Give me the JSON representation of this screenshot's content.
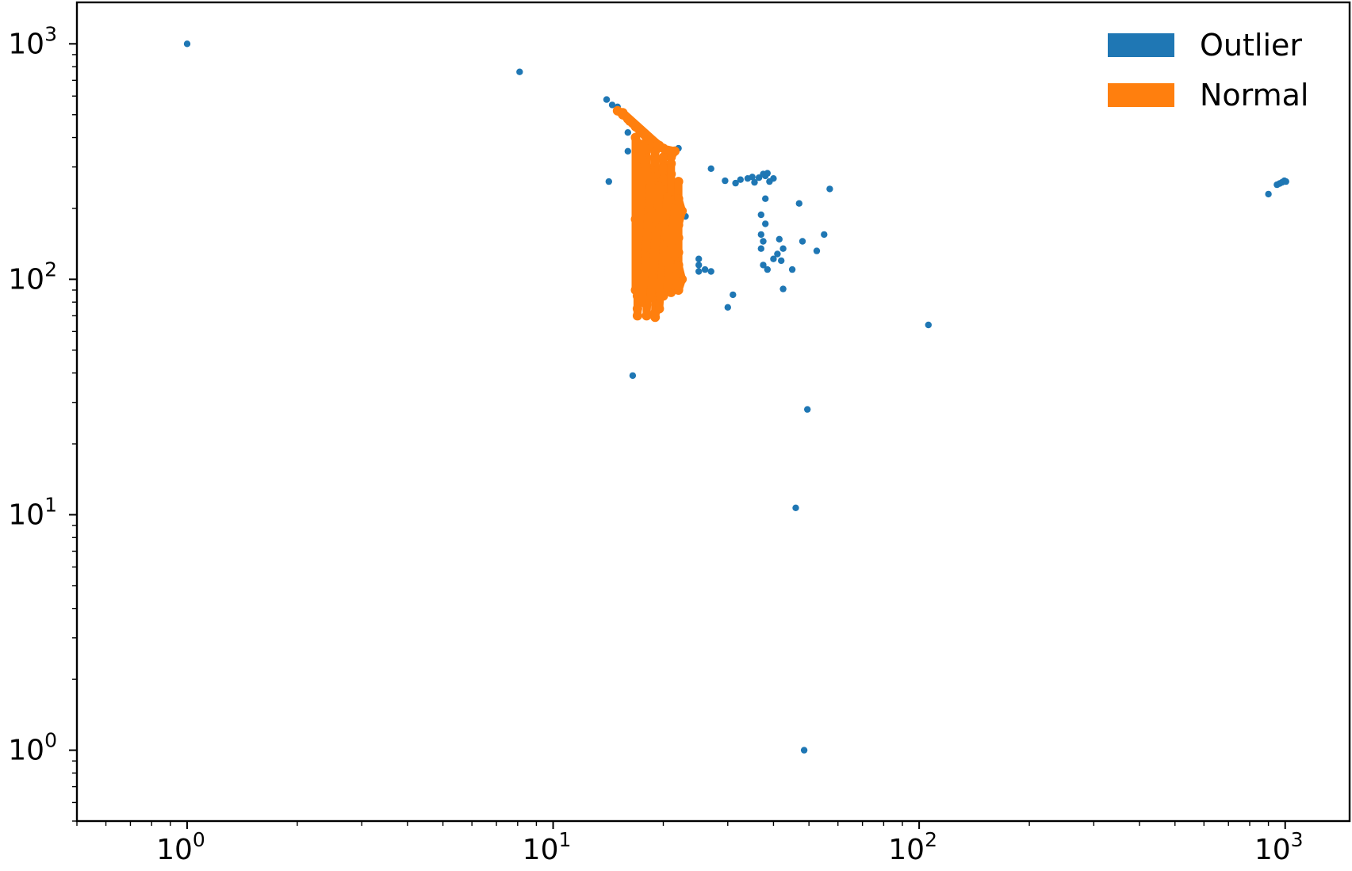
{
  "chart_data": {
    "type": "scatter",
    "title": "",
    "xlabel": "",
    "ylabel": "",
    "xscale": "log",
    "yscale": "log",
    "xlim": [
      0.5,
      1500
    ],
    "ylim": [
      0.5,
      1500
    ],
    "grid": false,
    "legend_position": "top-right",
    "x_tick_labels": [
      {
        "value": 1,
        "base": "10",
        "exp": "0"
      },
      {
        "value": 10,
        "base": "10",
        "exp": "1"
      },
      {
        "value": 100,
        "base": "10",
        "exp": "2"
      },
      {
        "value": 1000,
        "base": "10",
        "exp": "3"
      }
    ],
    "y_tick_labels": [
      {
        "value": 1,
        "base": "10",
        "exp": "0"
      },
      {
        "value": 10,
        "base": "10",
        "exp": "1"
      },
      {
        "value": 100,
        "base": "10",
        "exp": "2"
      },
      {
        "value": 1000,
        "base": "10",
        "exp": "3"
      }
    ],
    "series": [
      {
        "name": "Outlier",
        "color": "#1f77b4",
        "points": [
          [
            1.0,
            1000
          ],
          [
            8.1,
            760
          ],
          [
            14.0,
            580
          ],
          [
            14.5,
            550
          ],
          [
            15.0,
            540
          ],
          [
            16.0,
            420
          ],
          [
            16.0,
            350
          ],
          [
            14.2,
            260
          ],
          [
            22.0,
            360
          ],
          [
            27.0,
            295
          ],
          [
            29.5,
            262
          ],
          [
            31.5,
            256
          ],
          [
            32.5,
            265
          ],
          [
            34.0,
            268
          ],
          [
            35.0,
            272
          ],
          [
            36.5,
            270
          ],
          [
            35.5,
            258
          ],
          [
            38.0,
            275
          ],
          [
            39.0,
            260
          ],
          [
            40.0,
            268
          ],
          [
            37.5,
            280
          ],
          [
            38.5,
            282
          ],
          [
            38.0,
            220
          ],
          [
            47.0,
            210
          ],
          [
            57.0,
            242
          ],
          [
            37.0,
            188
          ],
          [
            38.0,
            172
          ],
          [
            37.0,
            155
          ],
          [
            37.5,
            145
          ],
          [
            37.0,
            135
          ],
          [
            41.5,
            148
          ],
          [
            41.0,
            128
          ],
          [
            42.5,
            135
          ],
          [
            40.0,
            122
          ],
          [
            42.0,
            120
          ],
          [
            38.5,
            110
          ],
          [
            37.5,
            115
          ],
          [
            45.0,
            110
          ],
          [
            48.0,
            145
          ],
          [
            52.5,
            132
          ],
          [
            55.0,
            155
          ],
          [
            22.0,
            210
          ],
          [
            23.0,
            185
          ],
          [
            25.0,
            122
          ],
          [
            25.0,
            115
          ],
          [
            25.0,
            108
          ],
          [
            26.0,
            110
          ],
          [
            27.0,
            108
          ],
          [
            31.0,
            86
          ],
          [
            30.0,
            76
          ],
          [
            42.5,
            91
          ],
          [
            106,
            64
          ],
          [
            16.5,
            39
          ],
          [
            49.5,
            28
          ],
          [
            46.0,
            10.7
          ],
          [
            48.5,
            1.0
          ],
          [
            900,
            230
          ],
          [
            950,
            252
          ],
          [
            965,
            255
          ],
          [
            980,
            258
          ],
          [
            995,
            262
          ],
          [
            1005,
            260
          ],
          [
            20.0,
            120
          ],
          [
            21.0,
            100
          ]
        ]
      },
      {
        "name": "Normal",
        "color": "#ff7f0e",
        "points": [
          [
            15.0,
            520
          ],
          [
            15.5,
            500
          ],
          [
            16.0,
            480
          ],
          [
            16.5,
            460
          ],
          [
            17.0,
            440
          ],
          [
            17.5,
            420
          ],
          [
            18.0,
            400
          ],
          [
            18.5,
            390
          ],
          [
            19.0,
            380
          ],
          [
            19.5,
            370
          ],
          [
            15.5,
            510
          ],
          [
            16.2,
            470
          ],
          [
            16.8,
            445
          ],
          [
            17.3,
            425
          ],
          [
            17.8,
            410
          ],
          [
            18.2,
            395
          ],
          [
            19.2,
            375
          ],
          [
            20.0,
            360
          ],
          [
            20.5,
            345
          ],
          [
            21.0,
            330
          ],
          [
            21.5,
            350
          ],
          [
            17.0,
            380
          ],
          [
            17.0,
            350
          ],
          [
            17.0,
            320
          ],
          [
            17.0,
            290
          ],
          [
            17.0,
            260
          ],
          [
            17.0,
            230
          ],
          [
            17.0,
            200
          ],
          [
            17.0,
            170
          ],
          [
            17.0,
            150
          ],
          [
            17.0,
            130
          ],
          [
            17.0,
            110
          ],
          [
            17.0,
            95
          ],
          [
            17.0,
            85
          ],
          [
            17.0,
            75
          ],
          [
            17.0,
            70
          ],
          [
            18.0,
            360
          ],
          [
            18.0,
            330
          ],
          [
            18.0,
            300
          ],
          [
            18.0,
            270
          ],
          [
            18.0,
            240
          ],
          [
            18.0,
            210
          ],
          [
            18.0,
            180
          ],
          [
            18.0,
            160
          ],
          [
            18.0,
            140
          ],
          [
            18.0,
            120
          ],
          [
            18.0,
            100
          ],
          [
            18.0,
            88
          ],
          [
            18.0,
            78
          ],
          [
            18.0,
            70
          ],
          [
            19.0,
            350
          ],
          [
            19.0,
            320
          ],
          [
            19.0,
            290
          ],
          [
            19.0,
            260
          ],
          [
            19.0,
            230
          ],
          [
            19.0,
            200
          ],
          [
            19.0,
            175
          ],
          [
            19.0,
            150
          ],
          [
            19.0,
            130
          ],
          [
            19.0,
            110
          ],
          [
            19.0,
            95
          ],
          [
            19.0,
            82
          ],
          [
            19.0,
            72
          ],
          [
            19.0,
            69
          ],
          [
            20.0,
            330
          ],
          [
            20.0,
            300
          ],
          [
            20.0,
            270
          ],
          [
            20.0,
            240
          ],
          [
            20.0,
            210
          ],
          [
            20.0,
            180
          ],
          [
            20.0,
            155
          ],
          [
            20.0,
            135
          ],
          [
            20.0,
            115
          ],
          [
            20.0,
            98
          ],
          [
            20.0,
            85
          ],
          [
            21.0,
            310
          ],
          [
            21.0,
            280
          ],
          [
            21.0,
            250
          ],
          [
            21.0,
            220
          ],
          [
            21.0,
            190
          ],
          [
            21.0,
            165
          ],
          [
            21.0,
            140
          ],
          [
            21.0,
            120
          ],
          [
            21.0,
            100
          ],
          [
            21.0,
            88
          ],
          [
            22.0,
            260
          ],
          [
            22.0,
            220
          ],
          [
            22.5,
            195
          ],
          [
            22.0,
            170
          ],
          [
            22.0,
            150
          ],
          [
            22.0,
            130
          ],
          [
            22.0,
            115
          ],
          [
            22.5,
            100
          ],
          [
            22.0,
            90
          ],
          [
            17.5,
            300
          ],
          [
            17.5,
            200
          ],
          [
            17.5,
            120
          ],
          [
            17.5,
            80
          ],
          [
            18.5,
            280
          ],
          [
            18.5,
            190
          ],
          [
            18.5,
            130
          ],
          [
            18.5,
            85
          ],
          [
            19.5,
            250
          ],
          [
            19.5,
            165
          ],
          [
            19.5,
            105
          ],
          [
            19.5,
            75
          ],
          [
            20.5,
            225
          ],
          [
            20.5,
            145
          ],
          [
            20.5,
            92
          ],
          [
            21.5,
            200
          ],
          [
            21.5,
            125
          ],
          [
            16.8,
            400
          ],
          [
            16.8,
            180
          ],
          [
            16.8,
            90
          ]
        ]
      }
    ]
  }
}
